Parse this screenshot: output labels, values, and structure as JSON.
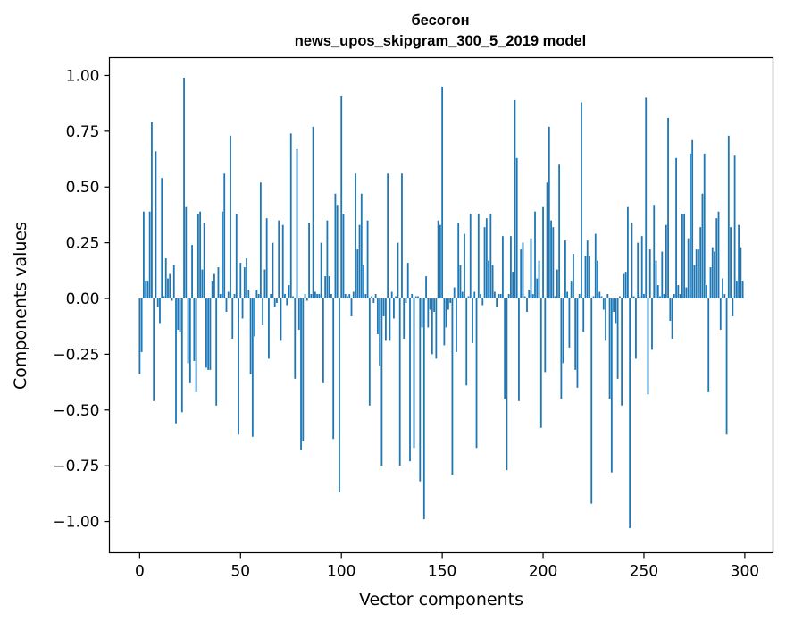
{
  "chart_data": {
    "type": "bar",
    "title": "бесогон",
    "subtitle": "news_upos_skipgram_300_5_2019 model",
    "xlabel": "Vector components",
    "ylabel": "Components values",
    "xlim": [
      -15,
      314
    ],
    "ylim": [
      -1.14,
      1.08
    ],
    "xticks": [
      0,
      50,
      100,
      150,
      200,
      250,
      300
    ],
    "xtick_labels": [
      "0",
      "50",
      "100",
      "150",
      "200",
      "250",
      "300"
    ],
    "yticks": [
      1.0,
      0.75,
      0.5,
      0.25,
      0.0,
      -0.25,
      -0.5,
      -0.75,
      -1.0
    ],
    "ytick_labels": [
      "1.00",
      "0.75",
      "0.50",
      "0.25",
      "0.00",
      "−0.25",
      "−0.50",
      "−0.75",
      "−1.00"
    ],
    "grid": false,
    "color": "#1f77b4",
    "values": [
      -0.34,
      -0.24,
      0.39,
      0.08,
      0.08,
      0.39,
      0.79,
      -0.46,
      0.66,
      -0.04,
      -0.11,
      0.54,
      0.01,
      0.18,
      0.09,
      0.11,
      -0.01,
      0.15,
      -0.56,
      -0.14,
      -0.15,
      -0.51,
      0.99,
      0.41,
      -0.29,
      -0.38,
      0.24,
      -0.28,
      -0.42,
      0.38,
      0.39,
      0.13,
      0.34,
      -0.31,
      -0.32,
      -0.32,
      0.08,
      0.11,
      -0.48,
      0.14,
      0.02,
      0.39,
      0.56,
      -0.06,
      0.03,
      0.73,
      -0.18,
      0.02,
      0.38,
      -0.61,
      0.16,
      -0.09,
      0.14,
      0.18,
      0.04,
      -0.34,
      -0.62,
      -0.17,
      0.04,
      0.02,
      0.52,
      -0.12,
      0.13,
      0.36,
      -0.27,
      0.02,
      0.25,
      -0.04,
      -0.02,
      0.35,
      -0.19,
      0.33,
      0.02,
      -0.03,
      0.06,
      0.74,
      0.01,
      -0.36,
      0.67,
      -0.14,
      -0.68,
      -0.64,
      0.02,
      -0.01,
      0.34,
      0.02,
      0.77,
      0.03,
      0.02,
      0.02,
      0.25,
      -0.38,
      0.1,
      0.35,
      0.1,
      0.02,
      -0.63,
      0.47,
      0.42,
      -0.87,
      0.91,
      0.38,
      0.02,
      0.01,
      0.02,
      -0.08,
      0.03,
      0.56,
      0.22,
      0.33,
      0.47,
      0.15,
      0.02,
      0.35,
      -0.48,
      0.01,
      -0.02,
      0.02,
      -0.16,
      -0.3,
      -0.75,
      -0.08,
      -0.19,
      0.56,
      -0.19,
      0.03,
      -0.09,
      0.01,
      0.25,
      -0.75,
      0.56,
      -0.18,
      -0.02,
      0.16,
      -0.73,
      0.02,
      -0.67,
      0.01,
      0.01,
      -0.82,
      -0.13,
      -0.99,
      0.1,
      -0.13,
      -0.05,
      -0.25,
      -0.06,
      -0.27,
      0.35,
      0.33,
      0.95,
      -0.21,
      -0.13,
      -0.05,
      -0.02,
      -0.79,
      0.05,
      -0.24,
      0.34,
      0.15,
      0.03,
      0.29,
      -0.39,
      0.01,
      0.38,
      -0.2,
      0.03,
      -0.67,
      0.38,
      0.02,
      -0.03,
      0.32,
      0.36,
      0.17,
      0.38,
      0.15,
      0.03,
      -0.04,
      0.02,
      0.02,
      0.28,
      -0.45,
      -0.77,
      0.02,
      0.28,
      0.12,
      0.89,
      0.63,
      -0.46,
      0.22,
      0.25,
      0.01,
      -0.06,
      0.04,
      0.27,
      0.02,
      0.39,
      0.09,
      0.17,
      -0.58,
      0.41,
      -0.33,
      0.52,
      0.77,
      0.35,
      0.32,
      0.01,
      0.13,
      0.6,
      -0.45,
      -0.29,
      0.26,
      0.03,
      -0.22,
      0.08,
      0.2,
      -0.32,
      -0.4,
      0.02,
      0.88,
      -0.15,
      0.19,
      0.26,
      0.19,
      -0.92,
      0.01,
      0.29,
      0.17,
      0.03,
      0.01,
      -0.05,
      -0.19,
      0.02,
      -0.45,
      -0.78,
      -0.06,
      -0.11,
      -0.36,
      0.01,
      -0.48,
      0.11,
      0.12,
      0.41,
      -1.03,
      0.34,
      0.01,
      -0.27,
      0.25,
      0.01,
      0.28,
      0.02,
      0.9,
      -0.43,
      0.22,
      -0.23,
      0.42,
      0.17,
      0.06,
      0.01,
      0.21,
      0.02,
      0.33,
      0.81,
      -0.1,
      -0.18,
      0.02,
      0.63,
      0.06,
      0.02,
      0.38,
      0.38,
      0.05,
      0.27,
      0.65,
      0.71,
      0.15,
      0.22,
      0.22,
      0.32,
      0.47,
      0.65,
      0.06,
      -0.42,
      0.14,
      0.23,
      0.21,
      0.36,
      0.39,
      -0.14,
      0.09,
      0.02,
      -0.61,
      0.73,
      0.32,
      -0.08,
      0.64,
      0.08,
      0.33,
      0.23,
      0.08
    ]
  }
}
